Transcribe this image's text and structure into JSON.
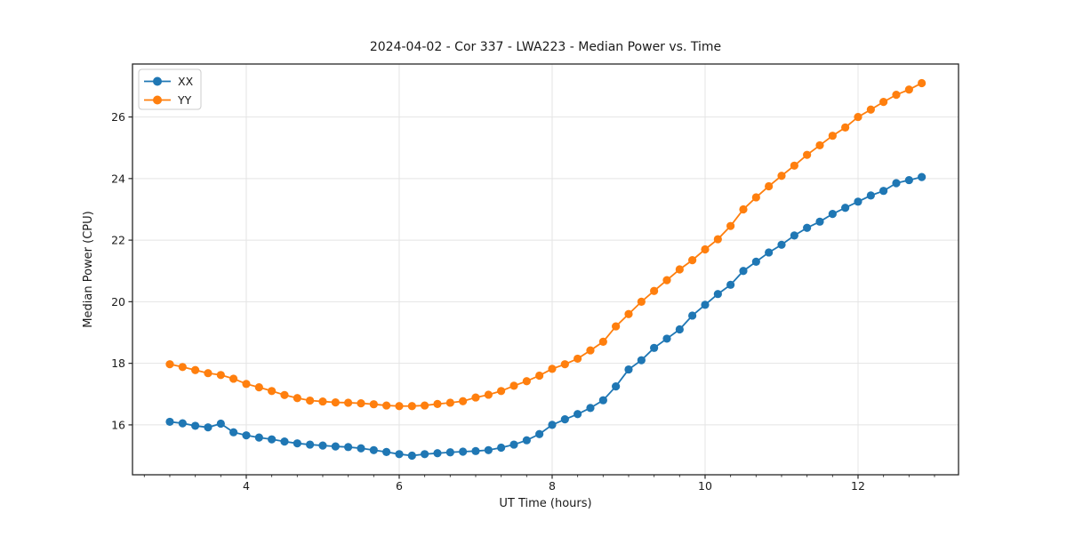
{
  "figure": {
    "background": "#ffffff",
    "text_color": "#1a1a1a",
    "spine_color": "#262626",
    "grid_color": "#e4e4e4"
  },
  "chart_data": {
    "type": "line",
    "title": "2024-04-02 - Cor 337 - LWA223 - Median Power vs. Time",
    "xlabel": "UT Time (hours)",
    "ylabel": "Median Power (CPU)",
    "xlim": [
      2.512,
      13.314
    ],
    "ylim": [
      14.38,
      27.72
    ],
    "xticks": [
      4,
      6,
      8,
      10,
      12
    ],
    "yticks": [
      16,
      18,
      20,
      22,
      24,
      26
    ],
    "x_minor_tick_step": 0.333333,
    "grid": true,
    "legend": {
      "position": "upper-left"
    },
    "x": [
      3.0,
      3.167,
      3.333,
      3.5,
      3.667,
      3.833,
      4.0,
      4.167,
      4.333,
      4.5,
      4.667,
      4.833,
      5.0,
      5.167,
      5.333,
      5.5,
      5.667,
      5.833,
      6.0,
      6.167,
      6.333,
      6.5,
      6.667,
      6.833,
      7.0,
      7.167,
      7.333,
      7.5,
      7.667,
      7.833,
      8.0,
      8.167,
      8.333,
      8.5,
      8.667,
      8.833,
      9.0,
      9.167,
      9.333,
      9.5,
      9.667,
      9.833,
      10.0,
      10.167,
      10.333,
      10.5,
      10.667,
      10.833,
      11.0,
      11.167,
      11.333,
      11.5,
      11.667,
      11.833,
      12.0,
      12.167,
      12.333,
      12.5,
      12.667,
      12.833
    ],
    "series": [
      {
        "name": "XX",
        "color": "#1f77b4",
        "values": [
          16.1,
          16.05,
          15.97,
          15.92,
          16.04,
          15.76,
          15.66,
          15.59,
          15.53,
          15.46,
          15.4,
          15.36,
          15.33,
          15.3,
          15.28,
          15.24,
          15.18,
          15.12,
          15.05,
          15.0,
          15.05,
          15.08,
          15.11,
          15.13,
          15.15,
          15.18,
          15.26,
          15.36,
          15.5,
          15.7,
          16.0,
          16.18,
          16.35,
          16.55,
          16.8,
          17.25,
          17.8,
          18.1,
          18.5,
          18.8,
          19.1,
          19.55,
          19.9,
          20.25,
          20.55,
          21.0,
          21.3,
          21.6,
          21.85,
          22.15,
          22.4,
          22.6,
          22.85,
          23.05,
          23.25,
          23.45,
          23.6,
          23.85,
          23.95,
          24.05
        ]
      },
      {
        "name": "YY",
        "color": "#ff7f0e",
        "values": [
          17.97,
          17.88,
          17.78,
          17.68,
          17.62,
          17.5,
          17.33,
          17.22,
          17.1,
          16.97,
          16.87,
          16.79,
          16.76,
          16.73,
          16.72,
          16.7,
          16.67,
          16.63,
          16.61,
          16.61,
          16.63,
          16.68,
          16.72,
          16.77,
          16.89,
          16.98,
          17.1,
          17.27,
          17.42,
          17.6,
          17.82,
          17.97,
          18.15,
          18.42,
          18.7,
          19.2,
          19.6,
          20.0,
          20.35,
          20.7,
          21.05,
          21.35,
          21.7,
          22.03,
          22.46,
          23.0,
          23.39,
          23.75,
          24.09,
          24.42,
          24.77,
          25.08,
          25.39,
          25.66,
          26.0,
          26.24,
          26.49,
          26.72,
          26.89,
          27.1
        ]
      }
    ]
  }
}
